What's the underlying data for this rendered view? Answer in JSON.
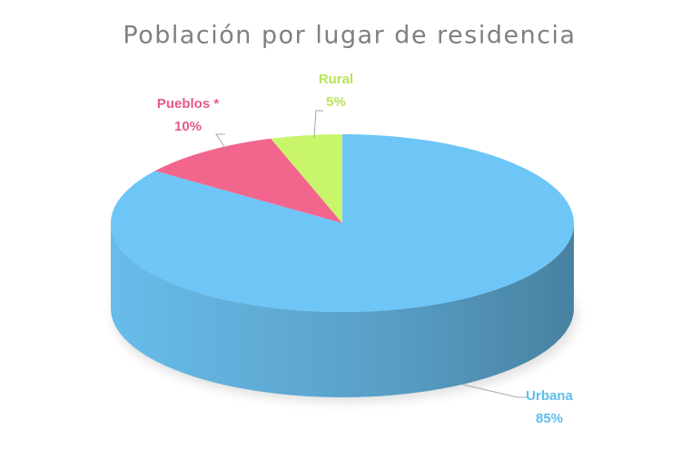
{
  "chart_data": {
    "type": "pie",
    "title": "Población por lugar de residencia",
    "categories": [
      "Urbana",
      "Pueblos *",
      "Rural"
    ],
    "values": [
      85,
      10,
      5
    ],
    "value_labels": [
      "85%",
      "10%",
      "5%"
    ],
    "colors": [
      "#6ec6f7",
      "#f2668e",
      "#c8f56a"
    ]
  }
}
